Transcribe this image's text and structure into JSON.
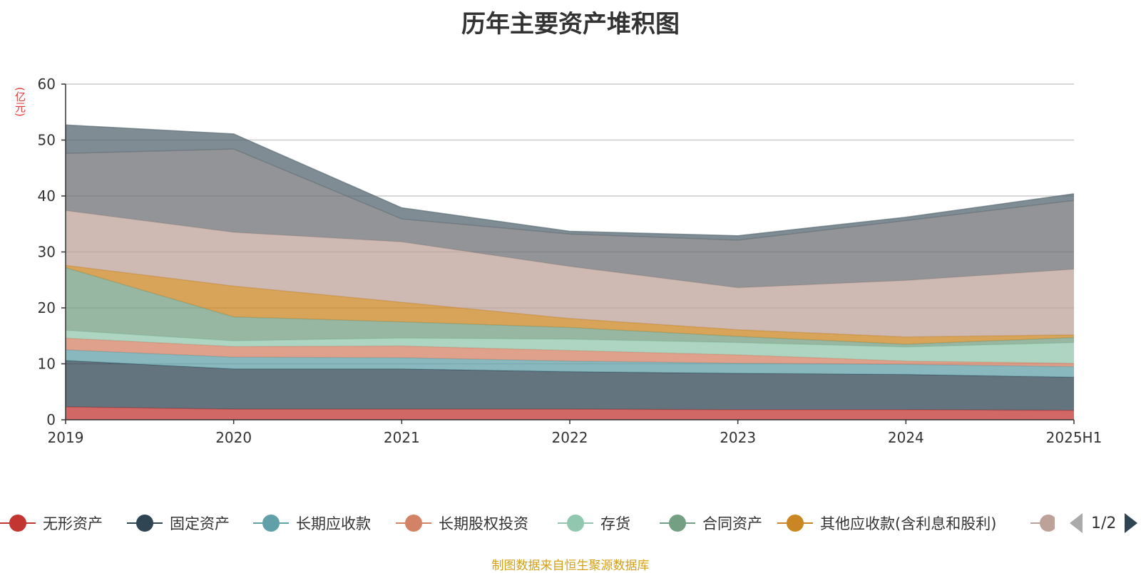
{
  "chart_data": {
    "type": "area",
    "stacked": true,
    "title": "历年主要资产堆积图",
    "y_unit": "(亿元)",
    "categories": [
      "2019",
      "2020",
      "2021",
      "2022",
      "2023",
      "2024",
      "2025H1"
    ],
    "ylim": [
      0,
      60
    ],
    "yticks": [
      0,
      10,
      20,
      30,
      40,
      50,
      60
    ],
    "grid": true,
    "legend_position": "bottom",
    "series": [
      {
        "name": "无形资产",
        "color": "#c23531",
        "values": [
          2.3,
          1.9,
          1.9,
          1.9,
          1.8,
          1.8,
          1.7
        ]
      },
      {
        "name": "固定资产",
        "color": "#2f4554",
        "values": [
          8.3,
          7.2,
          7.2,
          6.7,
          6.5,
          6.3,
          5.9
        ]
      },
      {
        "name": "长期应收款",
        "color": "#61a0a8",
        "values": [
          1.9,
          2.1,
          2.0,
          1.9,
          1.8,
          1.8,
          1.9
        ]
      },
      {
        "name": "长期股权投资",
        "color": "#d48265",
        "values": [
          2.1,
          1.9,
          2.1,
          1.9,
          1.5,
          0.6,
          0.6
        ]
      },
      {
        "name": "存货",
        "color": "#91c7ae",
        "values": [
          1.4,
          1.0,
          1.4,
          2.0,
          2.2,
          2.5,
          3.7
        ]
      },
      {
        "name": "合同资产",
        "color": "#749f83",
        "values": [
          11.2,
          4.3,
          2.9,
          2.1,
          1.1,
          0.5,
          0.9
        ]
      },
      {
        "name": "其他应收款(含利息和股利)",
        "color": "#ca8622",
        "values": [
          0.4,
          5.5,
          3.5,
          1.6,
          1.2,
          1.3,
          0.5
        ]
      },
      {
        "name": "",
        "color": "#bda29a",
        "values": [
          9.8,
          9.6,
          10.8,
          9.3,
          7.5,
          10.1,
          11.7
        ]
      },
      {
        "name": "",
        "color": "#6e7074",
        "values": [
          10.2,
          14.9,
          4.1,
          5.8,
          8.5,
          10.7,
          12.3
        ]
      },
      {
        "name": "",
        "color": "#546570",
        "values": [
          5.1,
          2.7,
          2.0,
          0.5,
          0.8,
          0.6,
          1.2
        ]
      }
    ]
  },
  "legend_items_visible": 8,
  "pager": {
    "text": "1/2"
  },
  "source_note": "制图数据来自恒生聚源数据库"
}
